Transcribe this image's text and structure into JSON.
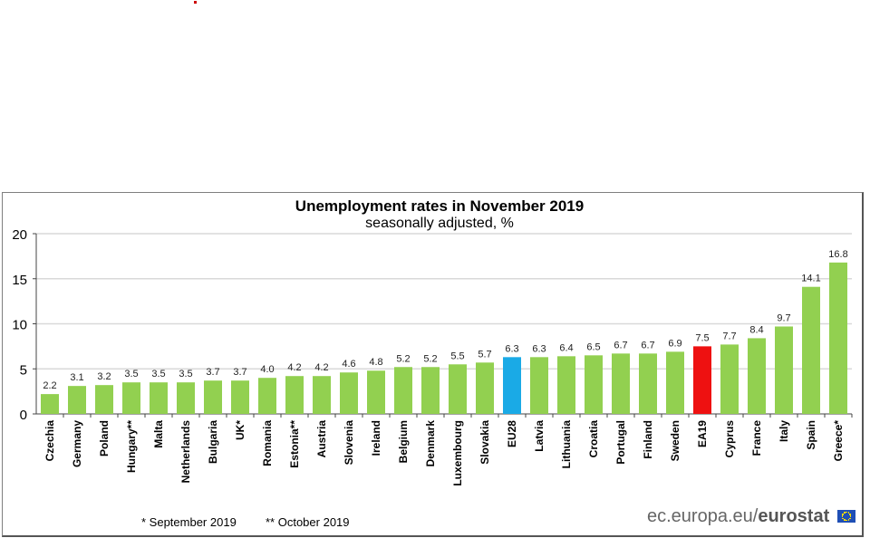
{
  "chart_data": {
    "type": "bar",
    "title": "Unemployment rates in November 2019",
    "subtitle": "seasonally adjusted, %",
    "categories": [
      "Czechia",
      "Germany",
      "Poland",
      "Hungary**",
      "Malta",
      "Netherlands",
      "Bulgaria",
      "UK*",
      "Romania",
      "Estonia**",
      "Austria",
      "Slovenia",
      "Ireland",
      "Belgium",
      "Denmark",
      "Luxembourg",
      "Slovakia",
      "EU28",
      "Latvia",
      "Lithuania",
      "Croatia",
      "Portugal",
      "Finland",
      "Sweden",
      "EA19",
      "Cyprus",
      "France",
      "Italy",
      "Spain",
      "Greece*"
    ],
    "values": [
      2.2,
      3.1,
      3.2,
      3.5,
      3.5,
      3.5,
      3.7,
      3.7,
      4.0,
      4.2,
      4.2,
      4.6,
      4.8,
      5.2,
      5.2,
      5.5,
      5.7,
      6.3,
      6.3,
      6.4,
      6.5,
      6.7,
      6.7,
      6.9,
      7.5,
      7.7,
      8.4,
      9.7,
      14.1,
      16.8
    ],
    "value_labels": [
      "2.2",
      "3.1",
      "3.2",
      "3.5",
      "3.5",
      "3.5",
      "3.7",
      "3.7",
      "4.0",
      "4.2",
      "4.2",
      "4.6",
      "4.8",
      "5.2",
      "5.2",
      "5.5",
      "5.7",
      "6.3",
      "6.3",
      "6.4",
      "6.5",
      "6.7",
      "6.7",
      "6.9",
      "7.5",
      "7.7",
      "8.4",
      "9.7",
      "14.1",
      "16.8"
    ],
    "highlight": {
      "EU28": "#1aaae6",
      "EA19": "#ee1111"
    },
    "bar_color": "#92d050",
    "ylim": [
      0,
      20
    ],
    "yticks": [
      0,
      5,
      10,
      15,
      20
    ],
    "grid": true,
    "xlabel": "",
    "ylabel": ""
  },
  "footnotes": {
    "one": "*  September 2019",
    "two": "** October 2019"
  },
  "source": {
    "prefix": "ec.europa.eu/",
    "brand": "eurostat"
  }
}
